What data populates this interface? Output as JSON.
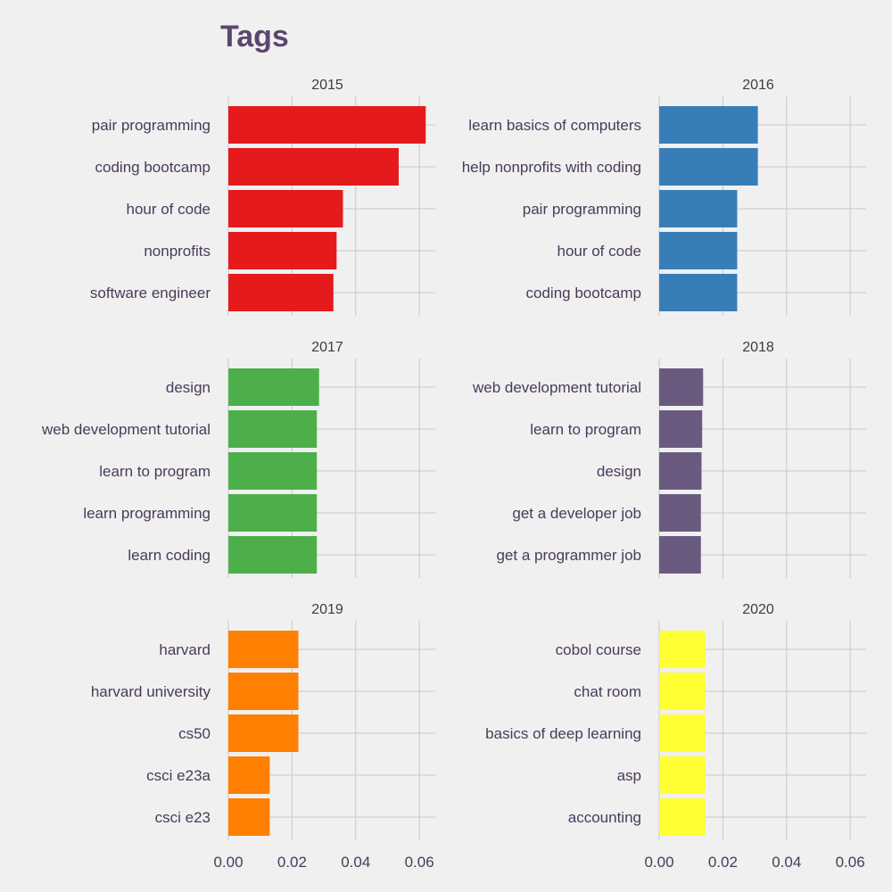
{
  "chart_data": {
    "type": "bar",
    "orientation": "horizontal",
    "title": "Tags",
    "xlabel": "",
    "ylabel": "",
    "xlim": [
      0,
      0.065
    ],
    "x_ticks": [
      0.0,
      0.02,
      0.04,
      0.06
    ],
    "x_tick_labels": [
      "0.00",
      "0.02",
      "0.04",
      "0.06"
    ],
    "grid": true,
    "legend": "none",
    "panels": [
      {
        "facet": "2015",
        "color": "#e41a1c",
        "categories": [
          "pair programming",
          "coding bootcamp",
          "hour of code",
          "nonprofits",
          "software engineer"
        ],
        "values": [
          0.062,
          0.0535,
          0.036,
          0.034,
          0.033
        ]
      },
      {
        "facet": "2016",
        "color": "#377eb8",
        "categories": [
          "learn basics of computers",
          "help nonprofits with coding",
          "pair programming",
          "hour of code",
          "coding bootcamp"
        ],
        "values": [
          0.031,
          0.031,
          0.0245,
          0.0245,
          0.0245
        ]
      },
      {
        "facet": "2017",
        "color": "#4daf4a",
        "categories": [
          "design",
          "web development tutorial",
          "learn to program",
          "learn programming",
          "learn coding"
        ],
        "values": [
          0.0285,
          0.0278,
          0.0278,
          0.0278,
          0.0278
        ]
      },
      {
        "facet": "2018",
        "color": "#6a5a80",
        "categories": [
          "web development tutorial",
          "learn to program",
          "design",
          "get a developer job",
          "get a programmer job"
        ],
        "values": [
          0.0138,
          0.0135,
          0.0133,
          0.0131,
          0.0131
        ]
      },
      {
        "facet": "2019",
        "color": "#ff7f00",
        "categories": [
          "harvard",
          "harvard university",
          "cs50",
          "csci e23a",
          "csci e23"
        ],
        "values": [
          0.022,
          0.022,
          0.022,
          0.013,
          0.013
        ]
      },
      {
        "facet": "2020",
        "color": "#ffff33",
        "categories": [
          "cobol course",
          "chat room",
          "basics of deep learning",
          "asp",
          "accounting"
        ],
        "values": [
          0.0145,
          0.0145,
          0.0145,
          0.0145,
          0.0145
        ]
      }
    ]
  }
}
